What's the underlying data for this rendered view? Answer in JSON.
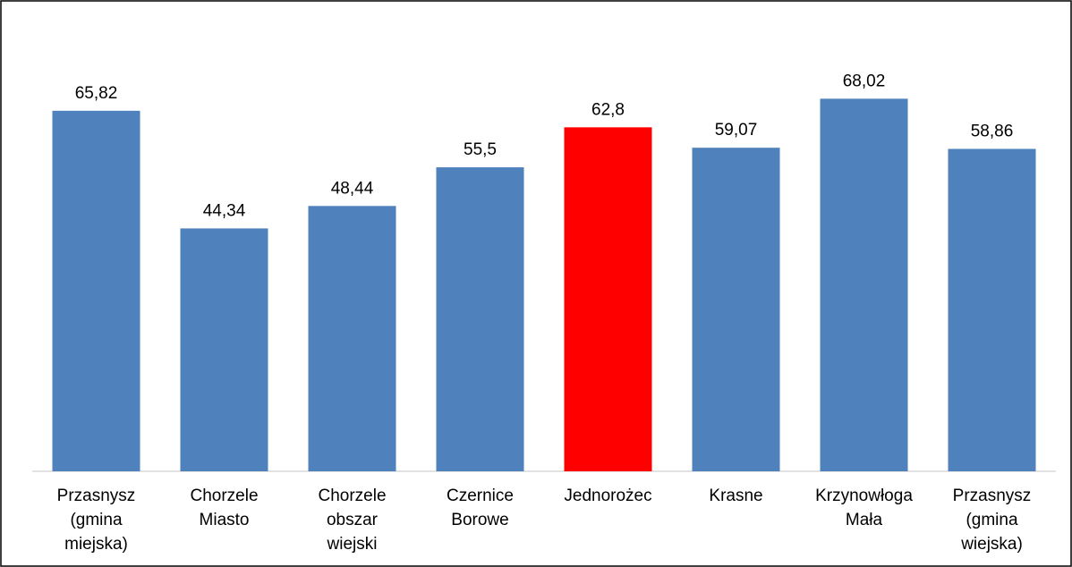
{
  "chart_data": {
    "type": "bar",
    "categories": [
      "Przasnysz\n(gmina\nmiejska)",
      "Chorzele\nMiasto",
      "Chorzele\nobszar\nwiejski",
      "Czernice\nBorowe",
      "Jednorożec",
      "Krasne",
      "Krzynowłoga\nMała",
      "Przasnysz\n(gmina\nwiejska)"
    ],
    "values": [
      65.82,
      44.34,
      48.44,
      55.5,
      62.8,
      59.07,
      68.02,
      58.86
    ],
    "value_labels": [
      "65,82",
      "44,34",
      "48,44",
      "55,5",
      "62,8",
      "59,07",
      "68,02",
      "58,86"
    ],
    "colors": [
      "#4f81bd",
      "#4f81bd",
      "#4f81bd",
      "#4f81bd",
      "#ff0000",
      "#4f81bd",
      "#4f81bd",
      "#4f81bd"
    ],
    "ylim": [
      0,
      80
    ]
  }
}
